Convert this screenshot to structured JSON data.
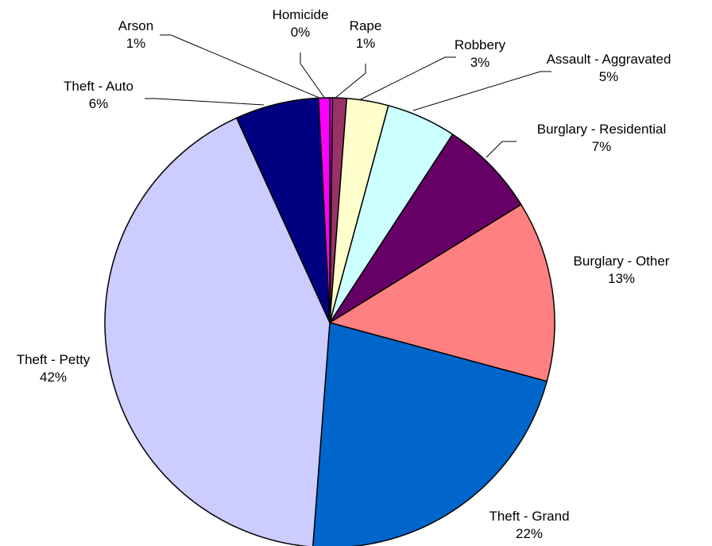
{
  "chart_data": {
    "type": "pie",
    "title": "",
    "start_angle_deg": -90,
    "direction": "clockwise",
    "slices": [
      {
        "label": "Homicide",
        "value": 0.2,
        "pct_label": "0%",
        "color": "#FF00FF"
      },
      {
        "label": "Rape",
        "value": 1,
        "pct_label": "1%",
        "color": "#993366"
      },
      {
        "label": "Robbery",
        "value": 3,
        "pct_label": "3%",
        "color": "#FFFFCC"
      },
      {
        "label": "Assault - Aggravated",
        "value": 5,
        "pct_label": "5%",
        "color": "#CCFFFF"
      },
      {
        "label": "Burglary - Residential",
        "value": 7,
        "pct_label": "7%",
        "color": "#660066"
      },
      {
        "label": "Burglary - Other",
        "value": 13,
        "pct_label": "13%",
        "color": "#FF8080"
      },
      {
        "label": "Theft - Grand",
        "value": 22,
        "pct_label": "22%",
        "color": "#0066CC"
      },
      {
        "label": "Theft - Petty",
        "value": 42,
        "pct_label": "42%",
        "color": "#CCCCFF"
      },
      {
        "label": "Theft - Auto",
        "value": 6,
        "pct_label": "6%",
        "color": "#000080"
      },
      {
        "label": "Arson",
        "value": 0.8,
        "pct_label": "1%",
        "color": "#FF00FF"
      }
    ]
  }
}
